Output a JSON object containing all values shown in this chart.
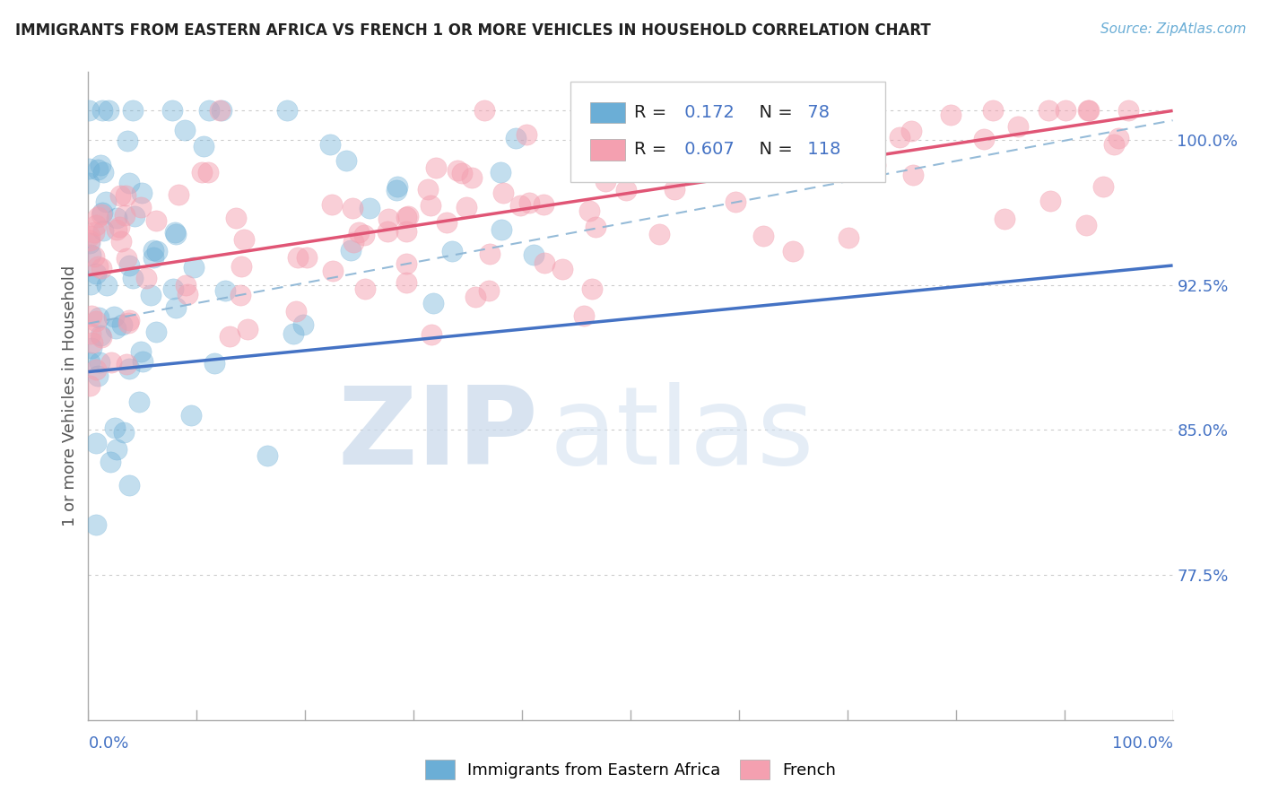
{
  "title": "IMMIGRANTS FROM EASTERN AFRICA VS FRENCH 1 OR MORE VEHICLES IN HOUSEHOLD CORRELATION CHART",
  "source": "Source: ZipAtlas.com",
  "ylabel": "1 or more Vehicles in Household",
  "y_ticks": [
    77.5,
    85.0,
    92.5,
    100.0
  ],
  "y_tick_labels": [
    "77.5%",
    "85.0%",
    "92.5%",
    "100.0%"
  ],
  "xlim": [
    0.0,
    100.0
  ],
  "ylim": [
    70.0,
    103.5
  ],
  "legend_R_blue": "0.172",
  "legend_N_blue": "78",
  "legend_R_pink": "0.607",
  "legend_N_pink": "118",
  "label_blue": "Immigrants from Eastern Africa",
  "label_pink": "French",
  "watermark_zip": "ZIP",
  "watermark_atlas": "atlas",
  "bg_color": "#ffffff",
  "blue_scatter_color": "#6baed6",
  "blue_scatter_edge": "#6baed6",
  "pink_scatter_color": "#f4a0b0",
  "pink_scatter_edge": "#f4a0b0",
  "trend_blue_color": "#4472c4",
  "trend_pink_color": "#e05575",
  "trend_dash_color": "#8ab4d4",
  "axis_label_color": "#4472c4",
  "title_color": "#222222",
  "source_color": "#6baed6",
  "ylabel_color": "#555555",
  "grid_color": "#cccccc",
  "blue_trend_x0": 0,
  "blue_trend_y0": 88.0,
  "blue_trend_x1": 100,
  "blue_trend_y1": 93.5,
  "pink_trend_x0": 0,
  "pink_trend_y0": 93.0,
  "pink_trend_x1": 100,
  "pink_trend_y1": 101.5,
  "dash_x0": 0,
  "dash_y0": 90.5,
  "dash_x1": 100,
  "dash_y1": 101.0
}
